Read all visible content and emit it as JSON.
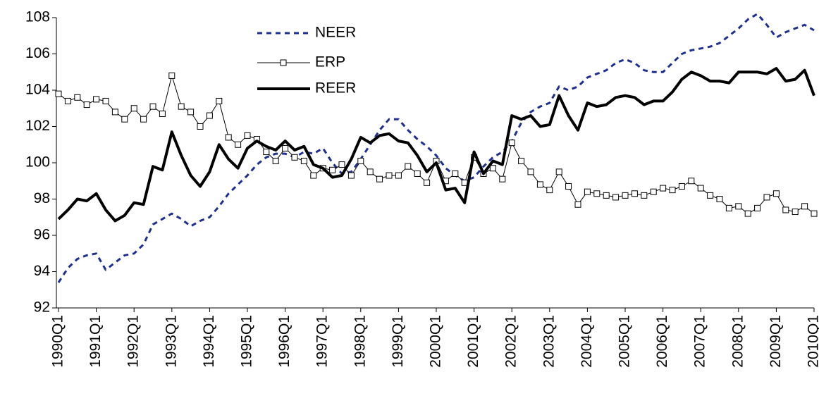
{
  "chart_data": {
    "type": "line",
    "categories": [
      "1990Q1",
      null,
      null,
      null,
      "1991Q1",
      null,
      null,
      null,
      "1992Q1",
      null,
      null,
      null,
      "1993Q1",
      null,
      null,
      null,
      "1994Q1",
      null,
      null,
      null,
      "1995Q1",
      null,
      null,
      null,
      "1996Q1",
      null,
      null,
      null,
      "1997Q1",
      null,
      null,
      null,
      "1998Q1",
      null,
      null,
      null,
      "1999Q1",
      null,
      null,
      null,
      "2000Q1",
      null,
      null,
      null,
      "2001Q1",
      null,
      null,
      null,
      "2002Q1",
      null,
      null,
      null,
      "2003Q1",
      null,
      null,
      null,
      "2004Q1",
      null,
      null,
      null,
      "2005Q1",
      null,
      null,
      null,
      "2006Q1",
      null,
      null,
      null,
      "2007Q1",
      null,
      null,
      null,
      "2008Q1",
      null,
      null,
      null,
      "2009Q1",
      null,
      null,
      null,
      "2010Q1"
    ],
    "series": [
      {
        "name": "NEER",
        "color": "#1f2f8f",
        "dash": true,
        "width": 3,
        "values": [
          93.4,
          94.2,
          94.7,
          94.9,
          95.0,
          94.1,
          94.5,
          94.9,
          95.0,
          95.5,
          96.6,
          96.9,
          97.2,
          96.9,
          96.5,
          96.8,
          97.0,
          97.6,
          98.3,
          98.8,
          99.3,
          99.9,
          100.3,
          100.5,
          100.5,
          100.3,
          100.6,
          100.5,
          100.8,
          100.0,
          99.4,
          99.5,
          100.2,
          101.0,
          101.8,
          102.4,
          102.4,
          101.8,
          101.3,
          100.9,
          100.4,
          99.7,
          99.3,
          99.0,
          99.2,
          99.8,
          100.3,
          100.6,
          101.2,
          102.2,
          102.8,
          103.1,
          103.3,
          104.2,
          104.0,
          104.2,
          104.7,
          104.9,
          105.1,
          105.5,
          105.7,
          105.5,
          105.1,
          105.0,
          105.0,
          105.5,
          106.0,
          106.2,
          106.3,
          106.4,
          106.6,
          107.0,
          107.4,
          107.9,
          108.2,
          107.6,
          106.9,
          107.2,
          107.4,
          107.6,
          107.3
        ]
      },
      {
        "name": "ERP",
        "color": "#000000",
        "marker": "square",
        "width": 1,
        "values": [
          103.8,
          103.4,
          103.6,
          103.2,
          103.5,
          103.4,
          102.8,
          102.4,
          103.0,
          102.4,
          103.1,
          102.7,
          104.8,
          103.1,
          102.8,
          102.0,
          102.6,
          103.4,
          101.4,
          101.0,
          101.5,
          101.3,
          100.6,
          100.1,
          100.8,
          100.3,
          100.1,
          99.3,
          99.7,
          99.6,
          99.9,
          99.3,
          100.1,
          99.5,
          99.1,
          99.3,
          99.3,
          99.8,
          99.4,
          98.9,
          100.1,
          99.0,
          99.4,
          98.9,
          100.3,
          99.4,
          99.7,
          99.1,
          101.1,
          100.1,
          99.5,
          98.8,
          98.5,
          99.5,
          98.7,
          97.7,
          98.4,
          98.3,
          98.2,
          98.1,
          98.2,
          98.3,
          98.2,
          98.4,
          98.6,
          98.5,
          98.7,
          99.0,
          98.6,
          98.2,
          98.0,
          97.5,
          97.6,
          97.2,
          97.5,
          98.1,
          98.3,
          97.4,
          97.3,
          97.6,
          97.2
        ]
      },
      {
        "name": "REER",
        "color": "#000000",
        "width": 4,
        "values": [
          96.9,
          97.4,
          98.0,
          97.9,
          98.3,
          97.4,
          96.8,
          97.1,
          97.8,
          97.7,
          99.8,
          99.6,
          101.7,
          100.4,
          99.3,
          98.7,
          99.5,
          101.0,
          100.2,
          99.7,
          100.8,
          101.2,
          100.9,
          100.7,
          101.2,
          100.7,
          100.9,
          99.9,
          99.7,
          99.2,
          99.3,
          100.2,
          101.4,
          101.1,
          101.5,
          101.6,
          101.2,
          101.1,
          100.4,
          99.5,
          100.0,
          98.5,
          98.6,
          97.8,
          100.6,
          99.4,
          100.1,
          99.9,
          102.6,
          102.4,
          102.6,
          102.0,
          102.1,
          103.7,
          102.6,
          101.8,
          103.3,
          103.1,
          103.2,
          103.6,
          103.7,
          103.6,
          103.2,
          103.4,
          103.4,
          103.9,
          104.6,
          105.0,
          104.8,
          104.5,
          104.5,
          104.4,
          105.0,
          105.0,
          105.0,
          104.9,
          105.2,
          104.5,
          104.6,
          105.1,
          103.7
        ]
      }
    ],
    "ylim": [
      92,
      108
    ],
    "yticks": [
      92,
      94,
      96,
      98,
      100,
      102,
      104,
      106,
      108
    ],
    "grid": false,
    "legend": "top"
  }
}
